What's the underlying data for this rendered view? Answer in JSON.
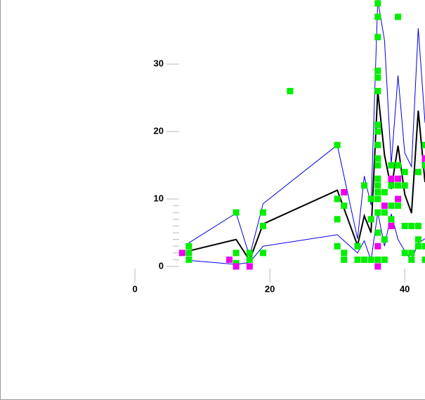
{
  "chart_data": {
    "type": "scatter",
    "xlim": [
      -20,
      43
    ],
    "ylim": [
      -19.8,
      39.5
    ],
    "xticks": [
      0,
      20,
      40
    ],
    "yticks": [
      0,
      10,
      20,
      30
    ],
    "yminorticks": [
      1,
      2,
      3,
      4,
      5,
      6,
      7,
      8,
      9
    ],
    "series": [
      {
        "color": "#00ee00",
        "mode": "markers",
        "x": [
          8,
          8,
          8,
          15,
          15,
          15,
          17,
          17,
          19,
          19,
          19,
          23,
          30,
          30,
          30,
          30,
          31,
          31,
          31,
          33,
          33,
          34,
          34,
          35,
          35,
          35,
          36,
          36,
          36,
          36,
          36,
          36,
          36,
          36,
          36,
          36,
          36,
          36,
          36,
          36,
          36,
          36,
          36,
          36,
          37,
          37,
          37,
          37,
          38,
          38,
          38,
          38,
          39,
          39,
          39,
          39,
          40,
          40,
          40,
          40,
          41,
          41,
          41,
          42,
          42,
          42,
          42,
          43,
          43,
          43,
          43
        ],
        "values": [
          3,
          2,
          1,
          8,
          2,
          0.5,
          2,
          1,
          8,
          6,
          2,
          26,
          18,
          10,
          7,
          3,
          2,
          1,
          9,
          3,
          1,
          12,
          1,
          10,
          7,
          1,
          39,
          37,
          34,
          29,
          28,
          26,
          21,
          20,
          18,
          16,
          15,
          13,
          12,
          11,
          10,
          8,
          5,
          1,
          11,
          8,
          4,
          1,
          15,
          12,
          9,
          7,
          37,
          15,
          12,
          9,
          14,
          12,
          6,
          2,
          6,
          2,
          1,
          14,
          6,
          4,
          3,
          18,
          15,
          3,
          1
        ]
      },
      {
        "color": "#ee00ee",
        "mode": "markers",
        "x": [
          7,
          14,
          15,
          17,
          31,
          36,
          36,
          37,
          38,
          38,
          39,
          39,
          43
        ],
        "values": [
          2,
          1,
          0,
          0,
          11,
          3,
          0,
          9,
          6,
          13,
          13,
          10,
          16
        ]
      },
      {
        "color": "#0000dd",
        "mode": "lines",
        "width": 1,
        "x": [
          8,
          15,
          17,
          19,
          30,
          33,
          34,
          35,
          36,
          37,
          38,
          39,
          40,
          41,
          42,
          43
        ],
        "values": [
          3.5,
          7.9,
          1.5,
          9.3,
          18.0,
          4.1,
          13.4,
          9.1,
          39.5,
          33.5,
          15.2,
          28.3,
          16.8,
          14.8,
          35.3,
          21.3
        ]
      },
      {
        "color": "#0000dd",
        "mode": "lines",
        "width": 1,
        "x": [
          8,
          15,
          17,
          19,
          30,
          33,
          34,
          35,
          36,
          37,
          38,
          39,
          40,
          41,
          42,
          43
        ],
        "values": [
          0.9,
          0.3,
          0.6,
          3.0,
          4.7,
          2.0,
          3.8,
          0.9,
          8.0,
          3.0,
          7.8,
          4.0,
          2.3,
          0.9,
          3.5,
          4.1
        ]
      },
      {
        "color": "#000000",
        "mode": "lines",
        "width": 2,
        "x": [
          8,
          15,
          17,
          19,
          30,
          33,
          34,
          35,
          36,
          37,
          38,
          39,
          40,
          41,
          42,
          43
        ],
        "values": [
          2.3,
          4.0,
          0.9,
          6.3,
          11.3,
          3.1,
          7.5,
          5.0,
          26.0,
          16.5,
          11.5,
          17.9,
          10.7,
          7.9,
          23.1,
          12.5
        ]
      }
    ]
  }
}
